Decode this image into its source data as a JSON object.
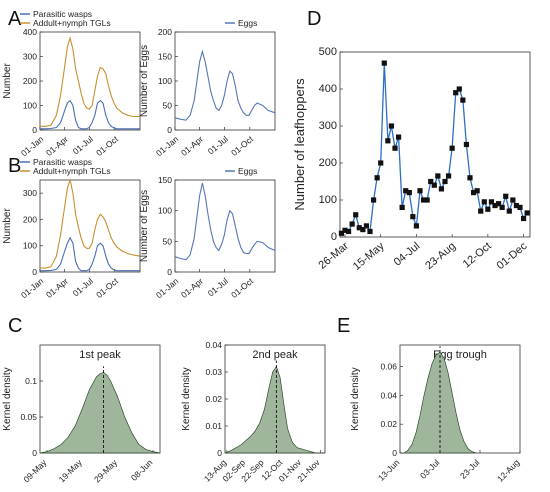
{
  "colors": {
    "wasps": "#4a6fb5",
    "adults": "#c8902f",
    "eggs": "#5577b8",
    "leafhopper_line": "#2c6fc4",
    "marker": "#111111",
    "density_fill": "#9fb69c",
    "density_edge": "#2e4a2e",
    "axis": "#333333"
  },
  "panels": {
    "A": "A",
    "B": "B",
    "C": "C",
    "D": "D",
    "E": "E"
  },
  "chart_data": [
    {
      "id": "A-left",
      "type": "line",
      "ylabel": "Number",
      "ylim": [
        0,
        400
      ],
      "yticks": [
        0,
        100,
        200,
        300,
        400
      ],
      "xlim": [
        0,
        365
      ],
      "xticks": [
        0,
        90,
        181,
        273
      ],
      "xticklabels": [
        "01-Jan",
        "01-Apr",
        "01-Jul",
        "01-Oct"
      ],
      "legend": [
        "Parasitic wasps",
        "Addult+nymph TGLs"
      ],
      "series": [
        {
          "name": "Parasitic wasps",
          "x": [
            0,
            20,
            40,
            60,
            75,
            90,
            100,
            110,
            120,
            130,
            140,
            150,
            160,
            170,
            180,
            190,
            200,
            210,
            220,
            230,
            240,
            250,
            260,
            270,
            280,
            300,
            320,
            340,
            365
          ],
          "values": [
            5,
            5,
            6,
            10,
            30,
            80,
            110,
            120,
            100,
            40,
            10,
            5,
            5,
            5,
            10,
            30,
            60,
            110,
            120,
            110,
            60,
            30,
            15,
            8,
            5,
            5,
            5,
            5,
            5
          ]
        },
        {
          "name": "Addult+nymph TGLs",
          "x": [
            0,
            20,
            40,
            60,
            75,
            90,
            100,
            110,
            120,
            130,
            140,
            150,
            160,
            170,
            180,
            190,
            200,
            210,
            220,
            230,
            240,
            250,
            260,
            270,
            280,
            300,
            320,
            340,
            365
          ],
          "values": [
            15,
            15,
            20,
            60,
            140,
            260,
            340,
            375,
            330,
            250,
            200,
            150,
            110,
            90,
            85,
            100,
            160,
            220,
            255,
            250,
            230,
            180,
            140,
            110,
            90,
            70,
            60,
            55,
            55
          ]
        }
      ]
    },
    {
      "id": "A-right",
      "type": "line",
      "ylabel": "Number of Eggs",
      "ylim": [
        0,
        200
      ],
      "yticks": [
        0,
        50,
        100,
        150,
        200
      ],
      "xlim": [
        0,
        365
      ],
      "xticks": [
        0,
        90,
        181,
        273
      ],
      "xticklabels": [
        "01-Jan",
        "01-Apr",
        "01-Jul",
        "01-Oct"
      ],
      "legend": [
        "Eggs"
      ],
      "series": [
        {
          "name": "Eggs",
          "x": [
            0,
            20,
            40,
            55,
            70,
            80,
            90,
            100,
            110,
            120,
            130,
            140,
            150,
            160,
            170,
            180,
            190,
            200,
            210,
            220,
            230,
            240,
            250,
            260,
            270,
            280,
            290,
            300,
            320,
            340,
            365
          ],
          "values": [
            25,
            22,
            20,
            30,
            60,
            100,
            140,
            160,
            140,
            110,
            80,
            60,
            45,
            40,
            50,
            70,
            100,
            120,
            115,
            90,
            60,
            45,
            35,
            30,
            30,
            40,
            50,
            55,
            50,
            40,
            35
          ]
        }
      ]
    },
    {
      "id": "B-left",
      "type": "line",
      "ylabel": "Number",
      "ylim": [
        0,
        350
      ],
      "yticks": [
        0,
        100,
        200,
        300
      ],
      "xlim": [
        0,
        365
      ],
      "xticks": [
        0,
        90,
        181,
        273
      ],
      "xticklabels": [
        "01-Jan",
        "01-Apr",
        "01-Jul",
        "01-Oct"
      ],
      "legend": [
        "Parasitic wasps",
        "Addult+nymph TGLs"
      ],
      "series": [
        {
          "name": "Parasitic wasps",
          "x": [
            0,
            20,
            40,
            60,
            75,
            90,
            100,
            110,
            120,
            130,
            140,
            150,
            160,
            170,
            180,
            190,
            200,
            210,
            220,
            230,
            240,
            250,
            260,
            270,
            280,
            300,
            320,
            340,
            365
          ],
          "values": [
            5,
            5,
            6,
            10,
            30,
            80,
            110,
            130,
            110,
            40,
            15,
            5,
            5,
            5,
            10,
            30,
            60,
            100,
            110,
            100,
            60,
            30,
            15,
            8,
            5,
            5,
            5,
            5,
            5
          ]
        },
        {
          "name": "Addult+nymph TGLs",
          "x": [
            0,
            20,
            40,
            60,
            75,
            90,
            100,
            110,
            120,
            130,
            140,
            150,
            160,
            170,
            180,
            190,
            200,
            210,
            220,
            230,
            240,
            250,
            260,
            270,
            280,
            300,
            320,
            340,
            365
          ],
          "values": [
            15,
            15,
            20,
            60,
            140,
            250,
            320,
            350,
            300,
            220,
            170,
            130,
            100,
            90,
            90,
            110,
            160,
            200,
            220,
            210,
            190,
            160,
            130,
            110,
            95,
            80,
            70,
            65,
            60
          ]
        }
      ]
    },
    {
      "id": "B-right",
      "type": "line",
      "ylabel": "Number of Eggs",
      "ylim": [
        0,
        150
      ],
      "yticks": [
        0,
        50,
        100,
        150
      ],
      "xlim": [
        0,
        365
      ],
      "xticks": [
        0,
        90,
        181,
        273
      ],
      "xticklabels": [
        "01-Jan",
        "01-Apr",
        "01-Jul",
        "01-Oct"
      ],
      "legend": [
        "Eggs"
      ],
      "series": [
        {
          "name": "Eggs",
          "x": [
            0,
            20,
            40,
            55,
            70,
            80,
            90,
            100,
            110,
            120,
            130,
            140,
            150,
            160,
            170,
            180,
            190,
            200,
            210,
            220,
            230,
            240,
            250,
            260,
            270,
            280,
            290,
            300,
            320,
            340,
            365
          ],
          "values": [
            25,
            22,
            20,
            28,
            55,
            90,
            125,
            145,
            125,
            95,
            70,
            50,
            40,
            35,
            45,
            60,
            85,
            100,
            95,
            75,
            55,
            40,
            32,
            30,
            30,
            38,
            45,
            50,
            48,
            40,
            35
          ]
        }
      ]
    },
    {
      "id": "D",
      "type": "line",
      "ylabel": "Number of leafhoppers",
      "ylim": [
        0,
        500
      ],
      "yticks": [
        0,
        100,
        200,
        300,
        400,
        500
      ],
      "xlim": [
        78,
        344
      ],
      "xticks": [
        85,
        135,
        185,
        235,
        285,
        335
      ],
      "xticklabels": [
        "26-Mar",
        "15-May",
        "04-Jul",
        "23-Aug",
        "12-Oct",
        "01-Dec"
      ],
      "series": [
        {
          "name": "",
          "x": [
            80,
            85,
            90,
            95,
            100,
            105,
            110,
            115,
            120,
            125,
            130,
            135,
            140,
            145,
            150,
            155,
            160,
            165,
            170,
            175,
            180,
            185,
            190,
            195,
            200,
            205,
            210,
            215,
            220,
            225,
            230,
            235,
            240,
            245,
            250,
            255,
            260,
            265,
            270,
            275,
            280,
            285,
            290,
            295,
            300,
            305,
            310,
            315,
            320,
            325,
            330,
            335,
            340
          ],
          "values": [
            10,
            18,
            15,
            35,
            60,
            25,
            20,
            30,
            15,
            100,
            160,
            200,
            470,
            260,
            300,
            240,
            270,
            80,
            125,
            120,
            55,
            30,
            125,
            100,
            100,
            150,
            140,
            165,
            130,
            150,
            165,
            240,
            390,
            400,
            370,
            250,
            160,
            120,
            125,
            70,
            95,
            75,
            95,
            85,
            90,
            80,
            110,
            70,
            100,
            85,
            80,
            50,
            65
          ]
        }
      ]
    },
    {
      "id": "C-left",
      "type": "area",
      "title": "1st peak",
      "ylabel": "Kernel density",
      "ylim": [
        0,
        0.15
      ],
      "yticks": [
        0,
        0.05,
        0.1
      ],
      "xlim": [
        127,
        161
      ],
      "xticks": [
        129,
        139,
        149,
        159
      ],
      "xticklabels": [
        "09-May",
        "19-May",
        "29-May",
        "08-Jun"
      ],
      "marker_line": 145,
      "series": [
        {
          "name": "",
          "x": [
            127,
            129,
            131,
            133,
            135,
            137,
            139,
            141,
            143,
            144,
            145,
            146,
            147,
            149,
            151,
            153,
            155,
            157,
            159,
            161
          ],
          "values": [
            0,
            0.002,
            0.006,
            0.012,
            0.022,
            0.038,
            0.062,
            0.088,
            0.106,
            0.11,
            0.112,
            0.108,
            0.1,
            0.078,
            0.05,
            0.028,
            0.012,
            0.005,
            0.002,
            0
          ]
        }
      ]
    },
    {
      "id": "C-right",
      "type": "area",
      "title": "2nd peak",
      "ylabel": "Kernel density",
      "ylim": [
        0,
        0.04
      ],
      "yticks": [
        0,
        0.01,
        0.02,
        0.03,
        0.04
      ],
      "xlim": [
        223,
        330
      ],
      "xticks": [
        225,
        245,
        265,
        285,
        305,
        325
      ],
      "xticklabels": [
        "13-Aug",
        "02-Sep",
        "22-Sep",
        "12-Oct",
        "01-Nov",
        "21-Nov"
      ],
      "marker_line": 278,
      "series": [
        {
          "name": "",
          "x": [
            223,
            230,
            240,
            250,
            255,
            260,
            265,
            270,
            274,
            278,
            282,
            286,
            290,
            295,
            300,
            310,
            320,
            330
          ],
          "values": [
            0,
            0.001,
            0.003,
            0.006,
            0.008,
            0.011,
            0.016,
            0.024,
            0.03,
            0.032,
            0.028,
            0.018,
            0.009,
            0.004,
            0.002,
            0.001,
            0,
            0
          ]
        }
      ]
    },
    {
      "id": "E",
      "type": "area",
      "title": "Egg trough",
      "ylabel": "Kernel density",
      "ylim": [
        0,
        0.075
      ],
      "yticks": [
        0,
        0.02,
        0.04,
        0.06
      ],
      "xlim": [
        164,
        224
      ],
      "xticks": [
        164,
        184,
        204,
        224
      ],
      "xticklabels": [
        "13-Jun",
        "03-Jul",
        "23-Jul",
        "12-Aug"
      ],
      "marker_line": 184,
      "series": [
        {
          "name": "",
          "x": [
            166,
            168,
            170,
            172,
            174,
            176,
            178,
            180,
            182,
            184,
            186,
            188,
            190,
            192,
            194,
            196,
            198,
            200,
            202
          ],
          "values": [
            0,
            0.002,
            0.006,
            0.014,
            0.026,
            0.04,
            0.052,
            0.062,
            0.068,
            0.07,
            0.066,
            0.056,
            0.042,
            0.028,
            0.016,
            0.008,
            0.003,
            0.001,
            0
          ]
        }
      ]
    }
  ]
}
